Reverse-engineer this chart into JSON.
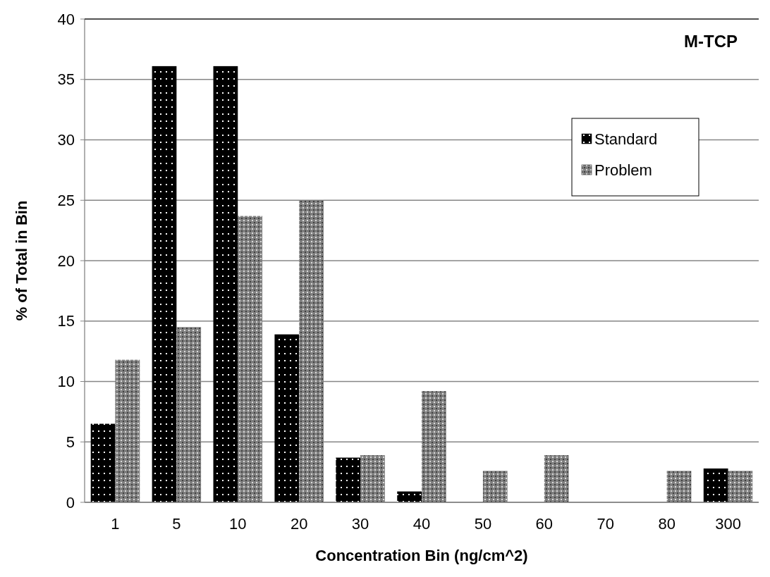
{
  "chart_data": {
    "type": "bar",
    "title": "M-TCP",
    "xlabel": "Concentration Bin (ng/cm^2)",
    "ylabel": "% of Total in Bin",
    "categories": [
      "1",
      "5",
      "10",
      "20",
      "30",
      "40",
      "50",
      "60",
      "70",
      "80",
      "300"
    ],
    "series": [
      {
        "name": "Standard",
        "color": "#000000",
        "values": [
          6.5,
          36.1,
          36.1,
          13.9,
          3.7,
          0.9,
          0,
          0,
          0,
          0,
          2.8
        ]
      },
      {
        "name": "Problem",
        "color": "#808080",
        "values": [
          11.8,
          14.5,
          23.7,
          25,
          3.9,
          9.2,
          2.6,
          3.9,
          0,
          2.6,
          2.6
        ]
      }
    ],
    "ylim": [
      0,
      40
    ],
    "yticks": [
      0,
      5,
      10,
      15,
      20,
      25,
      30,
      35,
      40
    ],
    "grid": "y",
    "legend": "top right"
  }
}
